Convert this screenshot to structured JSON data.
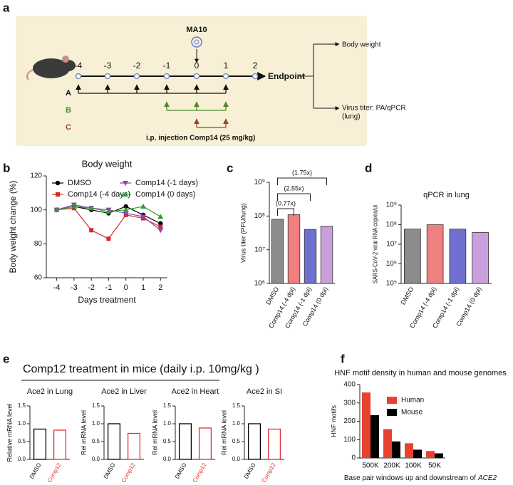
{
  "panel_labels": [
    "a",
    "b",
    "c",
    "d",
    "e",
    "f"
  ],
  "panel_a": {
    "trigger": "MA10",
    "timeline": [
      "-4",
      "-3",
      "-2",
      "-1",
      "0",
      "1",
      "2"
    ],
    "endpoint": "Endpoint",
    "groups": [
      "A",
      "B",
      "C"
    ],
    "injection": "i.p. injection Comp14 (25 mg/kg)",
    "outcomes": [
      "Body weight",
      "Virus titer: PA/qPCR",
      "(lung)"
    ]
  },
  "panel_e_title": "Comp12 treatment in mice (daily i.p. 10mg/kg )",
  "chart_data": [
    {
      "type": "line",
      "title": "Body weight",
      "xlabel": "Days treatment",
      "ylabel": "Body weight change (%)",
      "x": [
        -4,
        -3,
        -2,
        -1,
        0,
        1,
        2
      ],
      "xlim": [
        -4.6,
        2.4
      ],
      "xticks": [
        -4,
        -3,
        -2,
        -1,
        0,
        1,
        2
      ],
      "ylim": [
        60,
        120
      ],
      "yticks": [
        60,
        80,
        100,
        120
      ],
      "series": [
        {
          "name": "DMSO",
          "color": "#000000",
          "marker": "circle",
          "values": [
            100,
            102,
            100,
            98,
            102,
            97,
            92
          ]
        },
        {
          "name": "Comp14 (-4 days)",
          "color": "#d62728",
          "marker": "square",
          "values": [
            100,
            101,
            88,
            83,
            97,
            95,
            90
          ]
        },
        {
          "name": "Comp14 (-1 days)",
          "color": "#8e44ad",
          "marker": "triangle-down",
          "values": [
            100,
            103,
            101,
            100,
            98,
            96,
            88
          ]
        },
        {
          "name": "Comp14 (0 days)",
          "color": "#2ca02c",
          "marker": "triangle-up",
          "values": [
            100,
            102,
            101,
            99,
            100,
            102,
            96
          ]
        }
      ]
    },
    {
      "type": "bar",
      "ylabel": "Virus titer (PFU/lung)",
      "log": true,
      "style": "filled",
      "categories": [
        "DMSO",
        "Comp14 (-4 dpi)",
        "Comp14 (-1 dpi)",
        "Comp14 (0 dpi)"
      ],
      "values": [
        80000000,
        110000000,
        40000000,
        50000000
      ],
      "colors": [
        "#8c8c8c",
        "#f08080",
        "#6f6fd0",
        "#c9a0dc"
      ],
      "ylim": [
        1000000,
        1000000000
      ],
      "yticks": [
        {
          "value": 1000000,
          "label": "10⁶"
        },
        {
          "value": 10000000,
          "label": "10⁷"
        },
        {
          "value": 100000000,
          "label": "10⁸"
        },
        {
          "value": 1000000000,
          "label": "10⁹"
        }
      ],
      "annotations": [
        "(0.77x)",
        "(2.55x)",
        "(1.75x)"
      ]
    },
    {
      "type": "bar",
      "title": "qPCR in lung",
      "ylabel": "SARS-CoV-2 viral RNA copies/ul",
      "log": true,
      "style": "filled",
      "categories": [
        "DMSO",
        "Comp14 (-4 dpi)",
        "Comp14 (-1 dpi)",
        "Comp14 (0 dpi)"
      ],
      "values": [
        60000000,
        100000000,
        60000000,
        40000000
      ],
      "colors": [
        "#8c8c8c",
        "#f08080",
        "#6f6fd0",
        "#c9a0dc"
      ],
      "ylim": [
        100000,
        1000000000
      ],
      "yticks": [
        {
          "value": 100000,
          "label": "10⁵"
        },
        {
          "value": 1000000,
          "label": "10⁶"
        },
        {
          "value": 10000000,
          "label": "10⁷"
        },
        {
          "value": 100000000,
          "label": "10⁸"
        },
        {
          "value": 1000000000,
          "label": "10⁹"
        }
      ]
    },
    {
      "type": "bar",
      "title": "Ace2 in Lung",
      "ylabel": "Relative mRNA level",
      "style": "outline",
      "categories": [
        "DMSO",
        "Comp12"
      ],
      "values": [
        0.85,
        0.82
      ],
      "colors": [
        "#000000",
        "#e03030"
      ],
      "ylim": [
        0,
        1.5
      ],
      "yticks": [
        {
          "value": 0,
          "label": "0.0"
        },
        0.5,
        {
          "value": 1,
          "label": "1.0"
        },
        1.5
      ]
    },
    {
      "type": "bar",
      "title": "Ace2 in Liver",
      "ylabel": "Rel mRNA level",
      "style": "outline",
      "categories": [
        "DMSO",
        "Comp12"
      ],
      "values": [
        1.0,
        0.73
      ],
      "colors": [
        "#000000",
        "#e03030"
      ],
      "ylim": [
        0,
        1.5
      ],
      "yticks": [
        {
          "value": 0,
          "label": "0.0"
        },
        0.5,
        {
          "value": 1,
          "label": "1.0"
        },
        1.5
      ]
    },
    {
      "type": "bar",
      "title": "Ace2 in Heart",
      "ylabel": "Rel mRNA level",
      "style": "outline",
      "categories": [
        "DMSO",
        "Comp12"
      ],
      "values": [
        1.0,
        0.88
      ],
      "colors": [
        "#000000",
        "#e03030"
      ],
      "ylim": [
        0,
        1.5
      ],
      "yticks": [
        {
          "value": 0,
          "label": "0.0"
        },
        0.5,
        {
          "value": 1,
          "label": "1.0"
        },
        1.5
      ]
    },
    {
      "type": "bar",
      "title": "Ace2 in SI",
      "ylabel": "Rel mRNA level",
      "style": "outline",
      "categories": [
        "DMSO",
        "Comp12"
      ],
      "values": [
        1.0,
        0.85
      ],
      "colors": [
        "#000000",
        "#e03030"
      ],
      "ylim": [
        0,
        1.5
      ],
      "yticks": [
        {
          "value": 0,
          "label": "0.0"
        },
        0.5,
        {
          "value": 1,
          "label": "1.0"
        },
        1.5
      ]
    },
    {
      "type": "grouped-bar",
      "title": "HNF motif density in human and mouse genomes",
      "ylabel": "HNF motifs",
      "xlabel": "Base pair windows up and downstream of",
      "xlabel_gene": "ACE2",
      "categories": [
        "500K",
        "200K",
        "100K",
        "50K"
      ],
      "ylim": [
        0,
        400
      ],
      "yticks": [
        0,
        100,
        200,
        300,
        400
      ],
      "series": [
        {
          "name": "Human",
          "color": "#e8412f",
          "values": [
            357,
            157,
            80,
            38
          ]
        },
        {
          "name": "Mouse",
          "color": "#000000",
          "values": [
            233,
            90,
            45,
            25
          ]
        }
      ]
    }
  ]
}
